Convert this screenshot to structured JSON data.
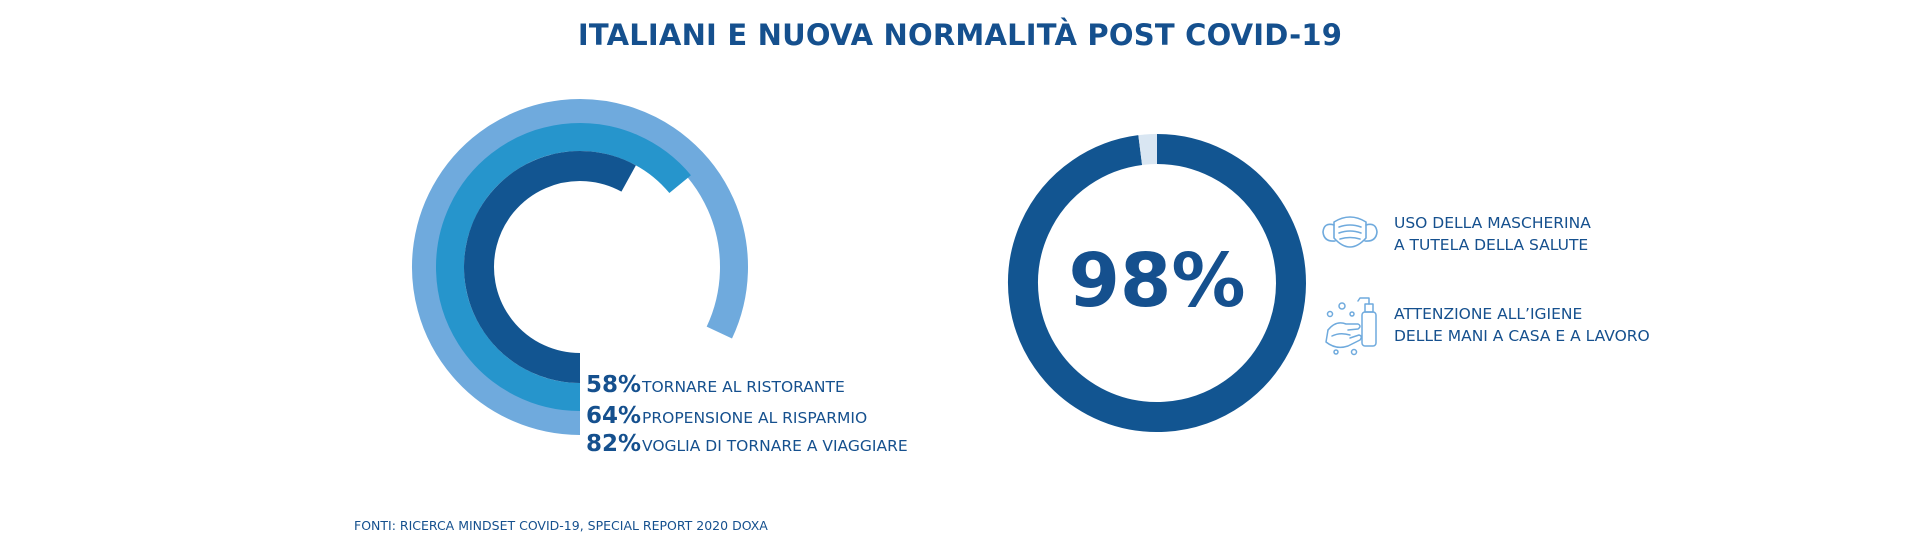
{
  "title": "ITALIANI E NUOVA NORMALITÀ POST COVID-19",
  "chart_data": [
    {
      "type": "radial-bar",
      "series": [
        {
          "label": "VOGLIA DI TORNARE A VIAGGIARE",
          "pct_text": "82%",
          "value": 82,
          "color": "#6faadd"
        },
        {
          "label": "PROPENSIONE AL RISPARMIO",
          "pct_text": "64%",
          "value": 64,
          "color": "#2695cc"
        },
        {
          "label": "TORNARE AL RISTORANTE",
          "pct_text": "58%",
          "value": 58,
          "color": "#125591"
        }
      ]
    },
    {
      "type": "donut",
      "value": 98,
      "value_text": "98%",
      "color": "#125591",
      "remainder_color": "#d9e6f2"
    }
  ],
  "legend": [
    {
      "pct": "58%",
      "label": "TORNARE AL RISTORANTE"
    },
    {
      "pct": "64%",
      "label": "PROPENSIONE AL RISPARMIO"
    },
    {
      "pct": "82%",
      "label": "VOGLIA DI TORNARE A VIAGGIARE"
    }
  ],
  "items": [
    {
      "icon": "face-mask-icon",
      "line1": "USO DELLA MASCHERINA",
      "line2": "A TUTELA DELLA SALUTE"
    },
    {
      "icon": "hand-washing-icon",
      "line1": "ATTENZIONE ALL’IGIENE",
      "line2": "DELLE MANI A CASA E A LAVORO"
    }
  ],
  "source": "FONTI: RICERCA MINDSET COVID-19, SPECIAL REPORT 2020 DOXA"
}
